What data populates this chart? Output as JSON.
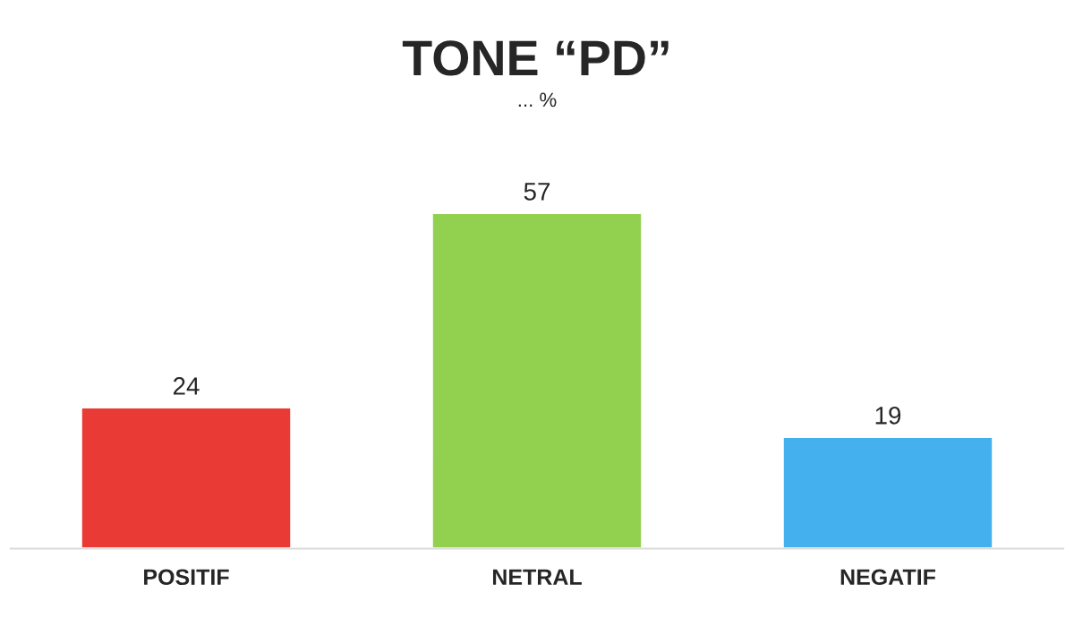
{
  "chart_data": {
    "type": "bar",
    "title": "TONE “PD”",
    "subtitle": "... %",
    "categories": [
      "POSITIF",
      "NETRAL",
      "NEGATIF"
    ],
    "values": [
      24,
      57,
      19
    ],
    "colors": [
      "#e93a35",
      "#92d050",
      "#45b0ee"
    ],
    "data_labels": true,
    "grid": false,
    "legend": false
  }
}
